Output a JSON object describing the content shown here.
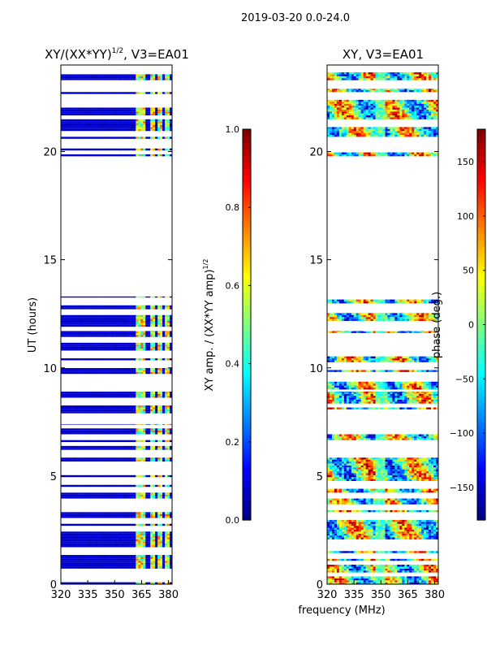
{
  "suptitle": "2019-03-20 0.0-24.0",
  "shared_xlabel": "frequency (MHz)",
  "chart_data": [
    {
      "type": "heatmap",
      "id": "amp",
      "title": "XY/(XX*YY)^1/2, V3=EA01",
      "title_main": "XY/(XX*YY)",
      "title_sup": "1/2",
      "title_tail": ", V3=EA01",
      "xlabel": "",
      "ylabel": "UT (hours)",
      "xlim": [
        320,
        382
      ],
      "ylim": [
        0,
        24
      ],
      "xticks": [
        320,
        335,
        350,
        365,
        380
      ],
      "yticks": [
        0,
        5,
        10,
        15,
        20
      ],
      "colormap": "jet",
      "colorbar": {
        "label": "XY amp. / (XX*YY amp)^1/2",
        "label_main": "XY amp. / (XX*YY amp)",
        "label_sup": "1/2",
        "range": [
          0.0,
          1.0
        ],
        "ticks": [
          "0.0",
          "0.2",
          "0.4",
          "0.6",
          "0.8",
          "1.0"
        ]
      },
      "data_bands_hours": [
        [
          0,
          7.4
        ],
        [
          7.9,
          8.9
        ],
        [
          9.0,
          11.7
        ],
        [
          11.9,
          13.3
        ],
        [
          19.6,
          22.9
        ],
        [
          23.3,
          24.0
        ]
      ],
      "high_amplitude_channels_MHz": [
        [
          362,
          367
        ],
        [
          370,
          372
        ],
        [
          374,
          376
        ],
        [
          378,
          380
        ]
      ],
      "background_value": 0.05
    },
    {
      "type": "heatmap",
      "id": "phase",
      "title": "XY, V3=EA01",
      "xlabel": "frequency (MHz)",
      "ylabel": "",
      "xlim": [
        320,
        382
      ],
      "ylim": [
        0,
        24
      ],
      "xticks": [
        320,
        335,
        350,
        365,
        380
      ],
      "yticks": [
        0,
        5,
        10,
        15,
        20
      ],
      "colormap": "jet",
      "colorbar": {
        "label": "phase (deg.)",
        "range": [
          -180,
          180
        ],
        "ticks": [
          "150",
          "100",
          "50",
          "0",
          "−50",
          "−100",
          "−150"
        ]
      },
      "data_bands_hours": [
        [
          0,
          7.4
        ],
        [
          7.9,
          8.9
        ],
        [
          9.0,
          11.7
        ],
        [
          11.9,
          13.3
        ],
        [
          19.6,
          22.9
        ],
        [
          23.3,
          24.0
        ]
      ],
      "phase_deg_range": [
        -180,
        180
      ]
    }
  ]
}
